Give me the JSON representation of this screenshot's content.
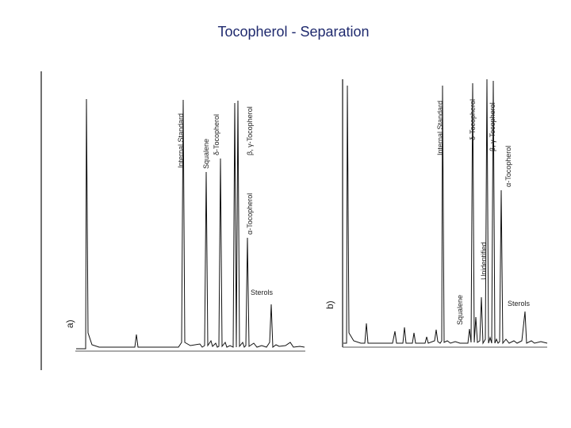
{
  "title": "Tocopherol - Separation",
  "chart_data": [
    {
      "type": "line",
      "panel_label": "a)",
      "peaks": [
        {
          "label": "Internal Standard"
        },
        {
          "label": "Squalene"
        },
        {
          "label": "δ-Tocopherol"
        },
        {
          "label": "β, γ-Tocopherol"
        },
        {
          "label": "α-Tocopherol"
        },
        {
          "label": "Sterols"
        }
      ]
    },
    {
      "type": "line",
      "panel_label": "b)",
      "peaks": [
        {
          "label": "Internal Standard"
        },
        {
          "label": "Squalene"
        },
        {
          "label": "δ-Tocopherol"
        },
        {
          "label": "Unidentified"
        },
        {
          "label": "β, γ-Tocopherol"
        },
        {
          "label": "α-Tocopherol"
        },
        {
          "label": "Sterols"
        }
      ]
    }
  ],
  "colors": {
    "title": "#1f2a6e",
    "trace": "#111111"
  }
}
